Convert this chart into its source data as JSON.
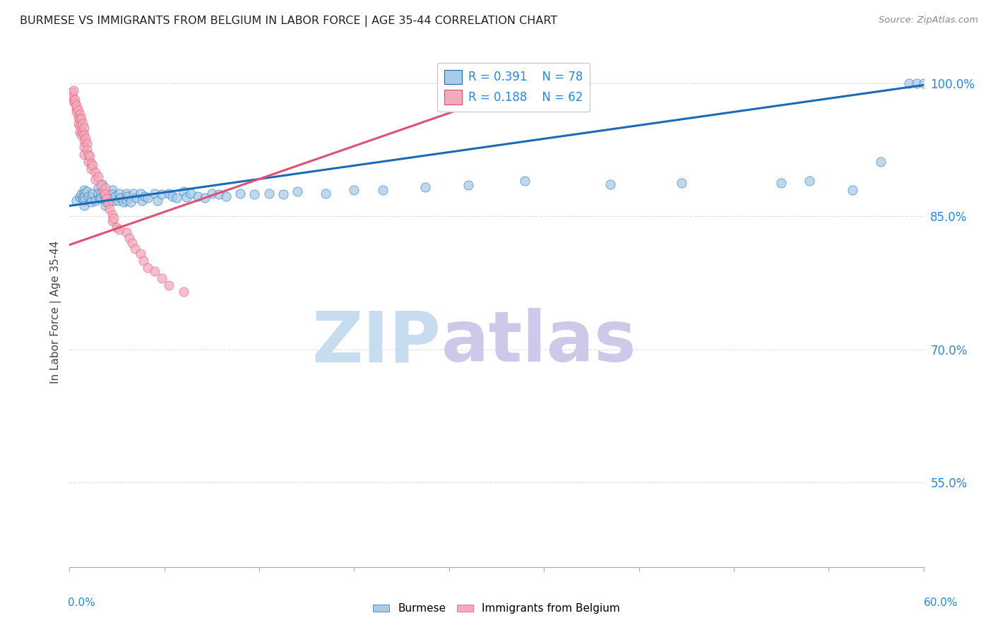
{
  "title": "BURMESE VS IMMIGRANTS FROM BELGIUM IN LABOR FORCE | AGE 35-44 CORRELATION CHART",
  "source": "Source: ZipAtlas.com",
  "ylabel": "In Labor Force | Age 35-44",
  "y_tick_vals": [
    0.55,
    0.7,
    0.85,
    1.0
  ],
  "y_tick_labels": [
    "55.0%",
    "70.0%",
    "85.0%",
    "100.0%"
  ],
  "xlim": [
    0.0,
    0.6
  ],
  "ylim": [
    0.455,
    1.03
  ],
  "blue_R": 0.391,
  "blue_N": 78,
  "pink_R": 0.188,
  "pink_N": 62,
  "blue_color": "#A8CBE8",
  "pink_color": "#F5AABB",
  "blue_line_color": "#1A6BB5",
  "pink_line_color": "#E05070",
  "watermark_zip": "ZIP",
  "watermark_atlas": "atlas",
  "watermark_color_zip": "#C8DCF0",
  "watermark_color_atlas": "#D0C8E8",
  "legend_label_blue": "Burmese",
  "legend_label_pink": "Immigrants from Belgium",
  "background_color": "#FFFFFF",
  "grid_color": "#DDDDDD",
  "axis_label_color": "#2288EE",
  "blue_scatter_x": [
    0.005,
    0.007,
    0.008,
    0.009,
    0.01,
    0.01,
    0.01,
    0.01,
    0.01,
    0.012,
    0.013,
    0.015,
    0.015,
    0.016,
    0.018,
    0.02,
    0.02,
    0.021,
    0.022,
    0.022,
    0.023,
    0.024,
    0.025,
    0.025,
    0.026,
    0.028,
    0.03,
    0.03,
    0.031,
    0.032,
    0.034,
    0.035,
    0.036,
    0.038,
    0.04,
    0.04,
    0.041,
    0.043,
    0.045,
    0.047,
    0.05,
    0.051,
    0.053,
    0.055,
    0.06,
    0.062,
    0.065,
    0.07,
    0.072,
    0.075,
    0.08,
    0.082,
    0.085,
    0.09,
    0.095,
    0.1,
    0.105,
    0.11,
    0.12,
    0.13,
    0.14,
    0.15,
    0.16,
    0.18,
    0.2,
    0.22,
    0.25,
    0.28,
    0.32,
    0.38,
    0.43,
    0.5,
    0.52,
    0.55,
    0.57,
    0.59,
    0.595,
    0.6
  ],
  "blue_scatter_y": [
    0.868,
    0.872,
    0.875,
    0.87,
    0.88,
    0.876,
    0.872,
    0.868,
    0.862,
    0.878,
    0.873,
    0.871,
    0.866,
    0.876,
    0.868,
    0.882,
    0.876,
    0.87,
    0.876,
    0.871,
    0.886,
    0.875,
    0.87,
    0.862,
    0.867,
    0.873,
    0.88,
    0.875,
    0.868,
    0.873,
    0.868,
    0.876,
    0.871,
    0.866,
    0.876,
    0.868,
    0.873,
    0.866,
    0.876,
    0.871,
    0.876,
    0.868,
    0.873,
    0.871,
    0.876,
    0.868,
    0.875,
    0.876,
    0.873,
    0.871,
    0.878,
    0.872,
    0.876,
    0.873,
    0.871,
    0.876,
    0.875,
    0.873,
    0.876,
    0.875,
    0.876,
    0.875,
    0.878,
    0.876,
    0.88,
    0.88,
    0.883,
    0.885,
    0.89,
    0.886,
    0.888,
    0.888,
    0.89,
    0.88,
    0.912,
    1.0,
    1.0,
    1.0
  ],
  "pink_scatter_x": [
    0.001,
    0.002,
    0.002,
    0.003,
    0.003,
    0.004,
    0.004,
    0.005,
    0.005,
    0.005,
    0.006,
    0.006,
    0.006,
    0.007,
    0.007,
    0.007,
    0.007,
    0.008,
    0.008,
    0.008,
    0.009,
    0.009,
    0.01,
    0.01,
    0.01,
    0.01,
    0.01,
    0.011,
    0.012,
    0.012,
    0.013,
    0.013,
    0.014,
    0.015,
    0.015,
    0.016,
    0.018,
    0.018,
    0.02,
    0.022,
    0.024,
    0.025,
    0.025,
    0.026,
    0.027,
    0.028,
    0.03,
    0.03,
    0.031,
    0.033,
    0.035,
    0.04,
    0.042,
    0.044,
    0.046,
    0.05,
    0.052,
    0.055,
    0.06,
    0.065,
    0.07,
    0.08
  ],
  "pink_scatter_y": [
    0.988,
    0.99,
    0.985,
    0.992,
    0.98,
    0.978,
    0.982,
    0.972,
    0.968,
    0.975,
    0.962,
    0.97,
    0.955,
    0.965,
    0.96,
    0.952,
    0.945,
    0.96,
    0.95,
    0.942,
    0.955,
    0.945,
    0.95,
    0.942,
    0.935,
    0.928,
    0.92,
    0.938,
    0.932,
    0.925,
    0.92,
    0.912,
    0.918,
    0.91,
    0.904,
    0.908,
    0.9,
    0.892,
    0.895,
    0.885,
    0.878,
    0.882,
    0.875,
    0.87,
    0.865,
    0.858,
    0.852,
    0.845,
    0.848,
    0.838,
    0.835,
    0.832,
    0.826,
    0.82,
    0.814,
    0.808,
    0.8,
    0.792,
    0.788,
    0.78,
    0.772,
    0.765
  ]
}
